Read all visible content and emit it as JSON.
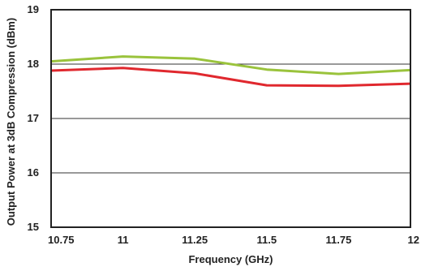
{
  "chart_data": {
    "type": "line",
    "title": "",
    "xlabel": "Frequency (GHz)",
    "ylabel": "Output Power at 3dB Compression (dBm)",
    "xlim": [
      10.75,
      12
    ],
    "ylim": [
      15,
      19
    ],
    "x_ticks": [
      "10.75",
      "11",
      "11.25",
      "11.5",
      "11.75",
      "12"
    ],
    "y_ticks": [
      "15",
      "16",
      "17",
      "18",
      "19"
    ],
    "grid": "horizontal",
    "legend": "none",
    "x": [
      10.75,
      11,
      11.25,
      11.5,
      11.75,
      12
    ],
    "series": [
      {
        "values": [
          18.05,
          18.14,
          18.1,
          17.9,
          17.82,
          17.89
        ],
        "color": "#9ac33c"
      },
      {
        "values": [
          17.88,
          17.93,
          17.83,
          17.61,
          17.6,
          17.64
        ],
        "color": "#e0282e"
      }
    ]
  }
}
